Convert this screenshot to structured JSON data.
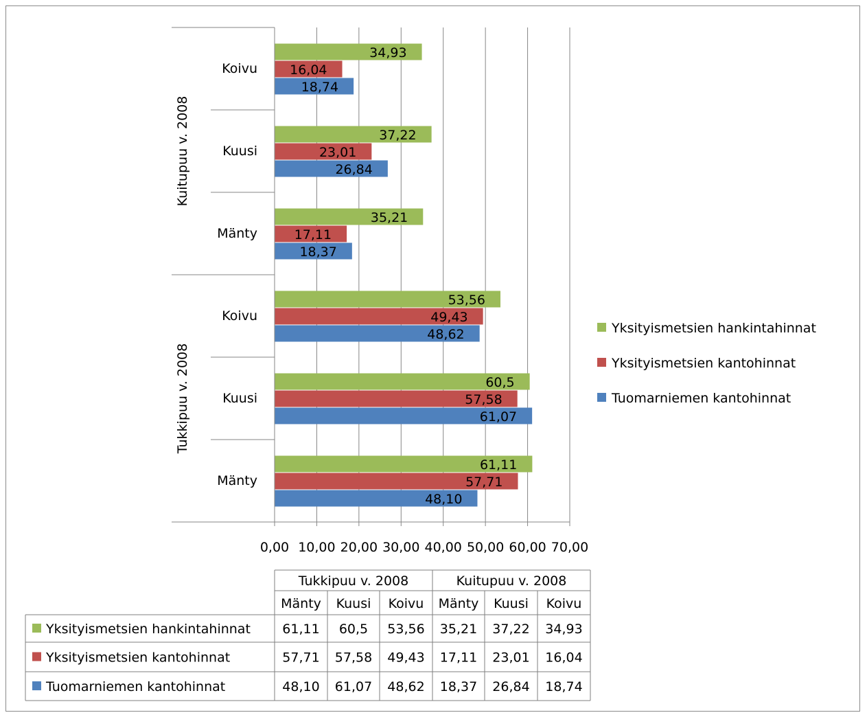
{
  "chart_data": {
    "type": "bar",
    "orientation": "horizontal",
    "groups": [
      {
        "label": "Tukkipuu v. 2008",
        "categories": [
          "Mänty",
          "Kuusi",
          "Koivu"
        ]
      },
      {
        "label": "Kuitupuu v. 2008",
        "categories": [
          "Mänty",
          "Kuusi",
          "Koivu"
        ]
      }
    ],
    "series": [
      {
        "name": "Yksityismetsien hankintahinnat",
        "color": "#9bbb59",
        "values": [
          61.11,
          60.5,
          53.56,
          35.21,
          37.22,
          34.93
        ],
        "labels": [
          "61,11",
          "60,5",
          "53,56",
          "35,21",
          "37,22",
          "34,93"
        ]
      },
      {
        "name": "Yksityismetsien kantohinnat",
        "color": "#c0504d",
        "values": [
          57.71,
          57.58,
          49.43,
          17.11,
          23.01,
          16.04
        ],
        "labels": [
          "57,71",
          "57,58",
          "49,43",
          "17,11",
          "23,01",
          "16,04"
        ]
      },
      {
        "name": "Tuomarniemen kantohinnat",
        "color": "#4f81bd",
        "values": [
          48.1,
          61.07,
          48.62,
          18.37,
          26.84,
          18.74
        ],
        "labels": [
          "48,10",
          "61,07",
          "48,62",
          "18,37",
          "26,84",
          "18,74"
        ]
      }
    ],
    "xlim": [
      0,
      70
    ],
    "x_ticks": [
      "0,00",
      "10,00",
      "20,00",
      "30,00",
      "40,00",
      "50,00",
      "60,00",
      "70,00"
    ],
    "grid": true,
    "legend_position": "right",
    "data_table": true
  }
}
